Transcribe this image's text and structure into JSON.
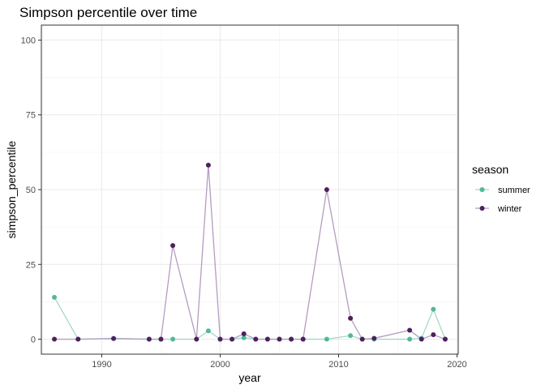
{
  "chart_data": {
    "type": "line",
    "title": "Simpson percentile over time",
    "xlabel": "year",
    "ylabel": "simpson_percentile",
    "xlim": [
      1984.9,
      2020.1
    ],
    "ylim": [
      -5,
      105
    ],
    "x_ticks": [
      1990,
      2000,
      2010,
      2020
    ],
    "x_tick_labels": [
      "1990",
      "2000",
      "2010",
      "2020"
    ],
    "y_ticks": [
      0,
      25,
      50,
      75,
      100
    ],
    "y_tick_labels": [
      "0",
      "25",
      "50",
      "75",
      "100"
    ],
    "grid": true,
    "legend": {
      "title": "season",
      "position": "right"
    },
    "series": [
      {
        "name": "summer",
        "color": "#52b89a",
        "line_color": "#a3d9c8",
        "points": [
          [
            1986,
            14
          ],
          [
            1988,
            0
          ],
          [
            1991,
            0.3
          ],
          [
            1994,
            0
          ],
          [
            1995,
            0
          ],
          [
            1996,
            0
          ],
          [
            1998,
            0
          ],
          [
            1999,
            2.8
          ],
          [
            2000,
            0
          ],
          [
            2001,
            0
          ],
          [
            2002,
            0.5
          ],
          [
            2003,
            0
          ],
          [
            2004,
            0
          ],
          [
            2005,
            0
          ],
          [
            2006,
            0
          ],
          [
            2007,
            0
          ],
          [
            2009,
            0
          ],
          [
            2011,
            1.2
          ],
          [
            2012,
            0
          ],
          [
            2013,
            0
          ],
          [
            2016,
            0
          ],
          [
            2017,
            0.3
          ],
          [
            2018,
            10
          ],
          [
            2019,
            0
          ]
        ]
      },
      {
        "name": "winter",
        "color": "#4f1f5e",
        "line_color": "#b49cc2",
        "points": [
          [
            1986,
            0
          ],
          [
            1988,
            0
          ],
          [
            1991,
            0.2
          ],
          [
            1994,
            0
          ],
          [
            1995,
            0
          ],
          [
            1996,
            31.3
          ],
          [
            1998,
            0
          ],
          [
            1999,
            58.2
          ],
          [
            2000,
            0
          ],
          [
            2001,
            0
          ],
          [
            2002,
            1.8
          ],
          [
            2003,
            0
          ],
          [
            2004,
            0
          ],
          [
            2005,
            0
          ],
          [
            2006,
            0
          ],
          [
            2007,
            0
          ],
          [
            2009,
            50
          ],
          [
            2011,
            7
          ],
          [
            2012,
            0
          ],
          [
            2013,
            0.3
          ],
          [
            2016,
            3
          ],
          [
            2017,
            0
          ],
          [
            2018,
            1.5
          ],
          [
            2019,
            0
          ]
        ]
      }
    ]
  }
}
